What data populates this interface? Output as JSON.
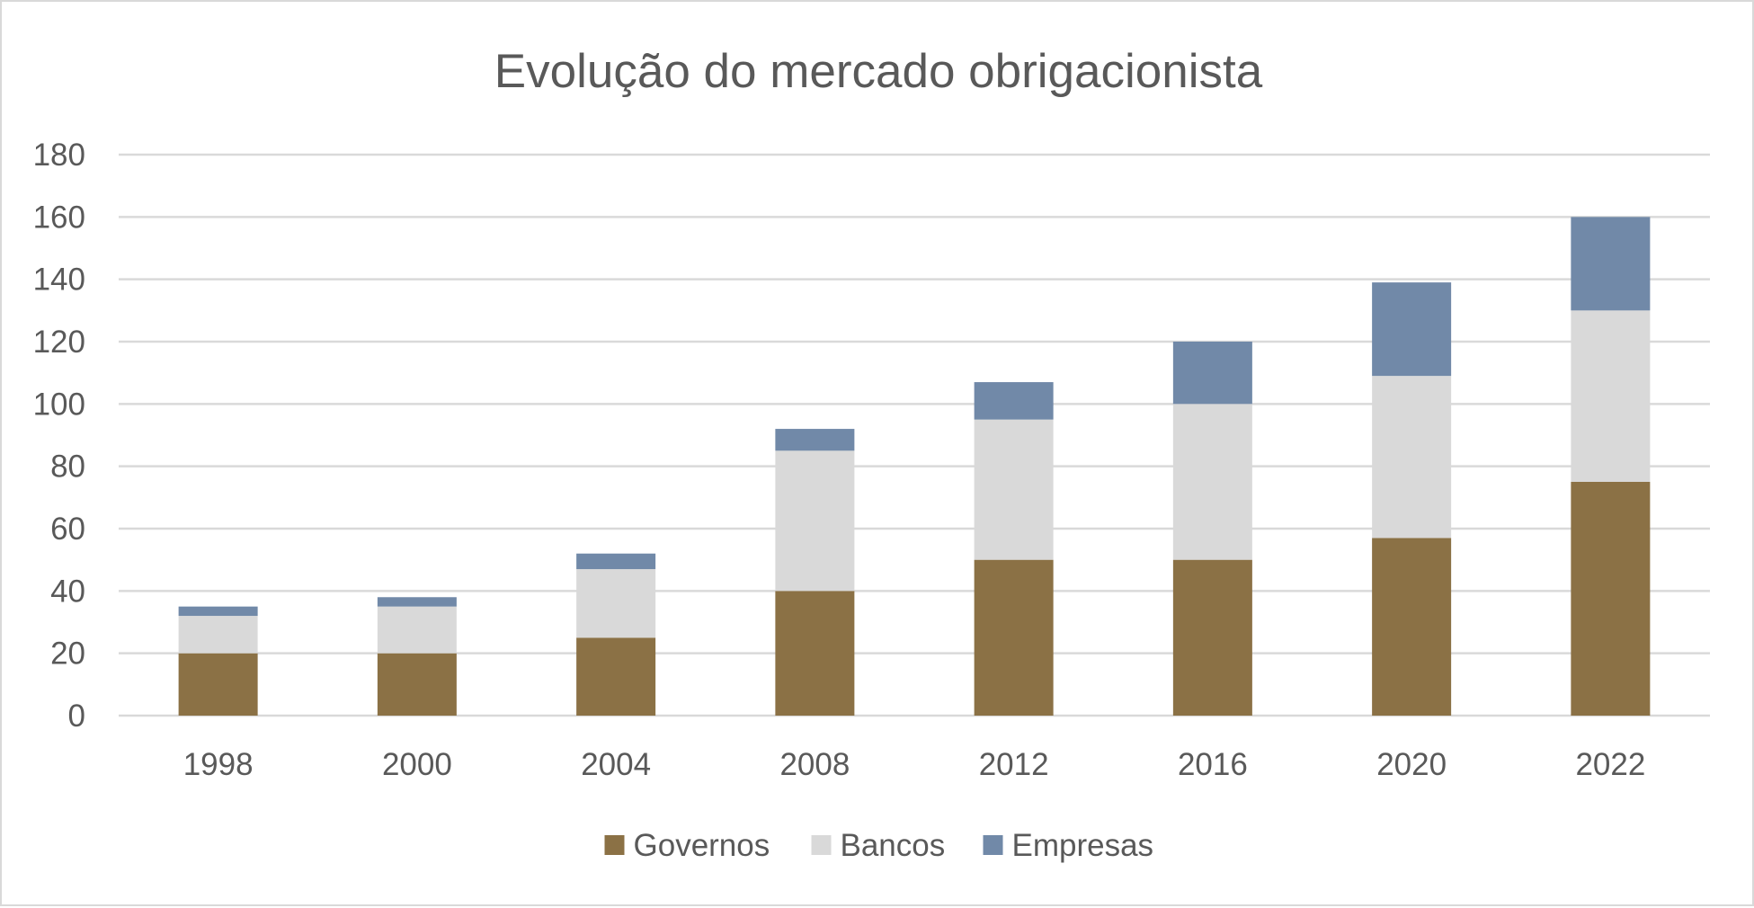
{
  "chart_data": {
    "type": "bar",
    "stacked": true,
    "title": "Evolução do mercado obrigacionista",
    "xlabel": "",
    "ylabel": "",
    "categories": [
      "1998",
      "2000",
      "2004",
      "2008",
      "2012",
      "2016",
      "2020",
      "2022"
    ],
    "ylim": [
      0,
      180
    ],
    "yticks": [
      0,
      20,
      40,
      60,
      80,
      100,
      120,
      140,
      160,
      180
    ],
    "grid": true,
    "legend_position": "bottom",
    "series": [
      {
        "name": "Governos",
        "color": "#8B7145",
        "values": [
          20,
          20,
          25,
          40,
          50,
          50,
          57,
          75
        ]
      },
      {
        "name": "Bancos",
        "color": "#D9D9D9",
        "values": [
          12,
          15,
          22,
          45,
          45,
          50,
          52,
          55
        ]
      },
      {
        "name": "Empresas",
        "color": "#7189A8",
        "values": [
          3,
          3,
          5,
          7,
          12,
          20,
          30,
          30
        ]
      }
    ]
  }
}
